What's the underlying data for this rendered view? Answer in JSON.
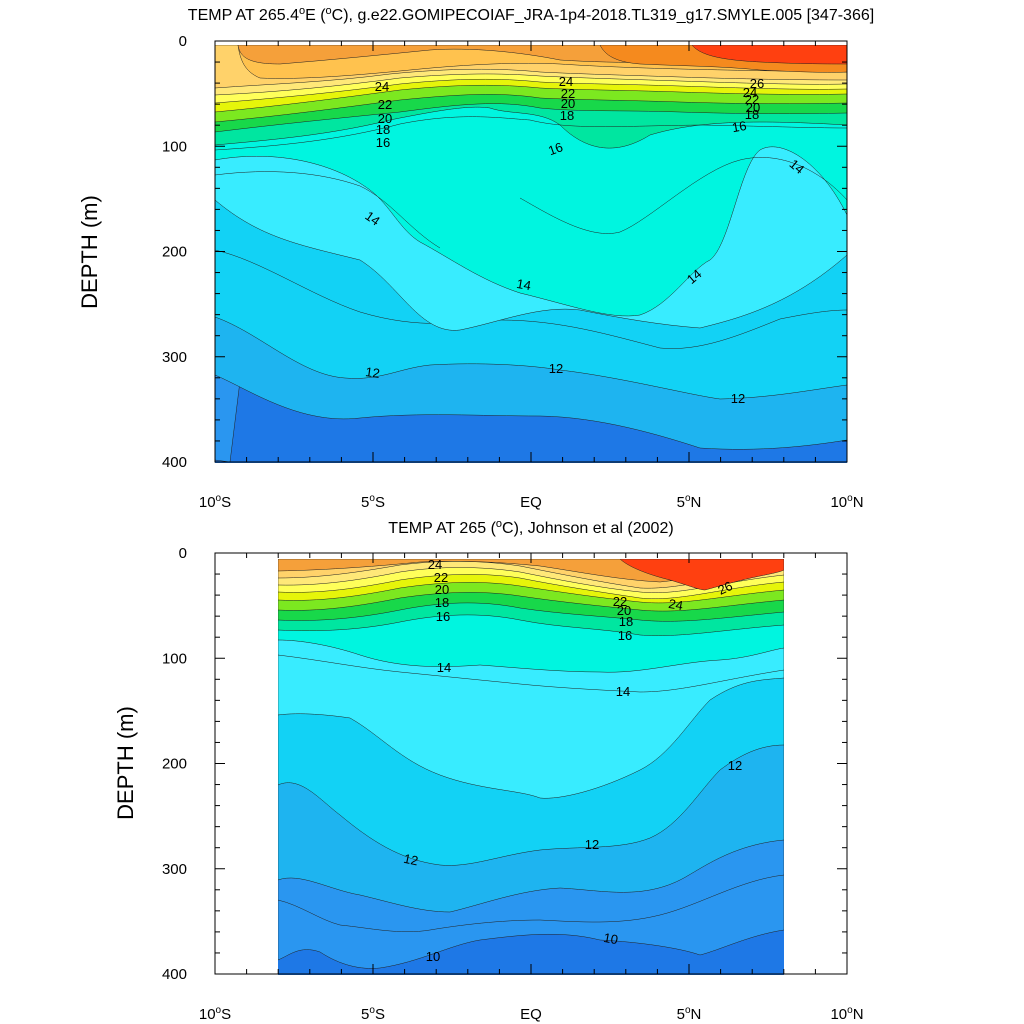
{
  "figure": {
    "panels": [
      {
        "title_pre": "TEMP AT 265.4",
        "title_sup1": "o",
        "title_mid": "E (",
        "title_sup2": "o",
        "title_post": "C), g.e22.GOMIPECOIAF_JRA-1p4-2018.TL319_g17.SMYLE.005 [347-366]",
        "ylabel": "DEPTH (m)"
      },
      {
        "title_pre": "TEMP AT 265 (",
        "title_sup1": "o",
        "title_post": "C), Johnson et al (2002)",
        "ylabel": "DEPTH (m)"
      }
    ],
    "x_ticks": [
      {
        "num": "10",
        "sup": "o",
        "hem": "S"
      },
      {
        "num": "5",
        "sup": "o",
        "hem": "S"
      },
      {
        "num": "EQ",
        "sup": "",
        "hem": ""
      },
      {
        "num": "5",
        "sup": "o",
        "hem": "N"
      },
      {
        "num": "10",
        "sup": "o",
        "hem": "N"
      }
    ],
    "y_ticks": [
      "0",
      "100",
      "200",
      "300",
      "400"
    ]
  },
  "chart_data": [
    {
      "type": "heatmap",
      "title": "TEMP AT 265.4°E (°C), g.e22.GOMIPECOIAF_JRA-1p4-2018.TL319_g17.SMYLE.005 [347-366]",
      "xlabel": "",
      "ylabel": "DEPTH (m)",
      "xlim": [
        -10,
        10
      ],
      "ylim": [
        400,
        0
      ],
      "x_tick_labels": [
        "10°S",
        "5°S",
        "EQ",
        "5°N",
        "10°N"
      ],
      "y_tick_labels": [
        "0",
        "100",
        "200",
        "300",
        "400"
      ],
      "contour_labels": [
        "24",
        "22",
        "20",
        "18",
        "16",
        "14",
        "12",
        "24",
        "22",
        "20",
        "18",
        "16",
        "14",
        "12",
        "26",
        "24",
        "22",
        "20",
        "18",
        "16",
        "14",
        "12",
        "14"
      ],
      "depth_profiles": [
        {
          "lat": -10,
          "depth_m": [
            0,
            60,
            75,
            95,
            110,
            130,
            160,
            200,
            250,
            320,
            400
          ],
          "temp_c": [
            26,
            24,
            22,
            19,
            17,
            15,
            14,
            13,
            12.5,
            12,
            11
          ]
        },
        {
          "lat": -5,
          "depth_m": [
            0,
            55,
            70,
            85,
            100,
            140,
            220,
            280,
            330,
            400
          ],
          "temp_c": [
            26,
            24,
            22,
            19,
            16.5,
            15,
            14,
            13,
            12,
            11
          ]
        },
        {
          "lat": 0,
          "depth_m": [
            0,
            50,
            60,
            70,
            80,
            100,
            180,
            260,
            360,
            400
          ],
          "temp_c": [
            26,
            24,
            22,
            20,
            18,
            16,
            15,
            13,
            12,
            11.5
          ]
        },
        {
          "lat": 5,
          "depth_m": [
            0,
            50,
            60,
            70,
            80,
            100,
            200,
            260,
            330,
            400
          ],
          "temp_c": [
            26,
            24,
            22,
            20,
            18,
            16,
            15,
            14,
            12.5,
            11.5
          ]
        },
        {
          "lat": 10,
          "depth_m": [
            0,
            50,
            60,
            70,
            80,
            100,
            170,
            250,
            330,
            400
          ],
          "temp_c": [
            27,
            25,
            22,
            20,
            18,
            16,
            14,
            13,
            12,
            11
          ]
        }
      ],
      "colorscale": [
        {
          "t": 10,
          "color": "#1e78e6"
        },
        {
          "t": 11,
          "color": "#2a96f0"
        },
        {
          "t": 12,
          "color": "#1eb4f0"
        },
        {
          "t": 13,
          "color": "#12d2f5"
        },
        {
          "t": 14,
          "color": "#38ecff"
        },
        {
          "t": 15,
          "color": "#00f5e0"
        },
        {
          "t": 16,
          "color": "#00e6a0"
        },
        {
          "t": 17,
          "color": "#18d84a"
        },
        {
          "t": 18,
          "color": "#7ce820"
        },
        {
          "t": 19,
          "color": "#e6f50a"
        },
        {
          "t": 20,
          "color": "#ffff5a"
        },
        {
          "t": 21,
          "color": "#ffe878"
        },
        {
          "t": 22,
          "color": "#ffd26a"
        },
        {
          "t": 24,
          "color": "#ffb43c"
        },
        {
          "t": 26,
          "color": "#f58a1e"
        },
        {
          "t": 28,
          "color": "#ff4010"
        }
      ]
    },
    {
      "type": "heatmap",
      "title": "TEMP AT 265 (°C), Johnson et al (2002)",
      "xlabel": "",
      "ylabel": "DEPTH (m)",
      "xlim": [
        -10,
        10
      ],
      "ylim": [
        400,
        0
      ],
      "data_lat_range": [
        -8,
        8
      ],
      "x_tick_labels": [
        "10°S",
        "5°S",
        "EQ",
        "5°N",
        "10°N"
      ],
      "y_tick_labels": [
        "0",
        "100",
        "200",
        "300",
        "400"
      ],
      "contour_labels": [
        "24",
        "22",
        "20",
        "18",
        "16",
        "14",
        "12",
        "10",
        "22",
        "20",
        "18",
        "16",
        "14",
        "12",
        "10",
        "24",
        "26",
        "12"
      ],
      "depth_profiles": [
        {
          "lat": -8,
          "depth_m": [
            0,
            20,
            45,
            60,
            75,
            100,
            140,
            210,
            300,
            380,
            400
          ],
          "temp_c": [
            24.5,
            24,
            22,
            19,
            16,
            15,
            14,
            13,
            12,
            11,
            10
          ]
        },
        {
          "lat": -5,
          "depth_m": [
            0,
            20,
            40,
            55,
            70,
            100,
            150,
            240,
            300,
            390,
            400
          ],
          "temp_c": [
            24.5,
            24,
            22,
            19,
            16,
            15,
            14,
            13,
            12,
            10.5,
            10
          ]
        },
        {
          "lat": 0,
          "depth_m": [
            0,
            30,
            50,
            65,
            80,
            120,
            230,
            290,
            360,
            400
          ],
          "temp_c": [
            24.5,
            23,
            21,
            18,
            16,
            14.5,
            13,
            12,
            10.5,
            10
          ]
        },
        {
          "lat": 5,
          "depth_m": [
            0,
            30,
            55,
            70,
            85,
            130,
            200,
            260,
            380,
            400
          ],
          "temp_c": [
            27,
            24,
            21,
            18,
            16,
            14.5,
            13,
            12,
            10.5,
            10
          ]
        },
        {
          "lat": 8,
          "depth_m": [
            0,
            20,
            40,
            55,
            70,
            115,
            185,
            275,
            360,
            400
          ],
          "temp_c": [
            27.5,
            26,
            22,
            19,
            16,
            14.5,
            13,
            12,
            10.5,
            10
          ]
        }
      ],
      "colorscale": "same as panel 1"
    }
  ]
}
